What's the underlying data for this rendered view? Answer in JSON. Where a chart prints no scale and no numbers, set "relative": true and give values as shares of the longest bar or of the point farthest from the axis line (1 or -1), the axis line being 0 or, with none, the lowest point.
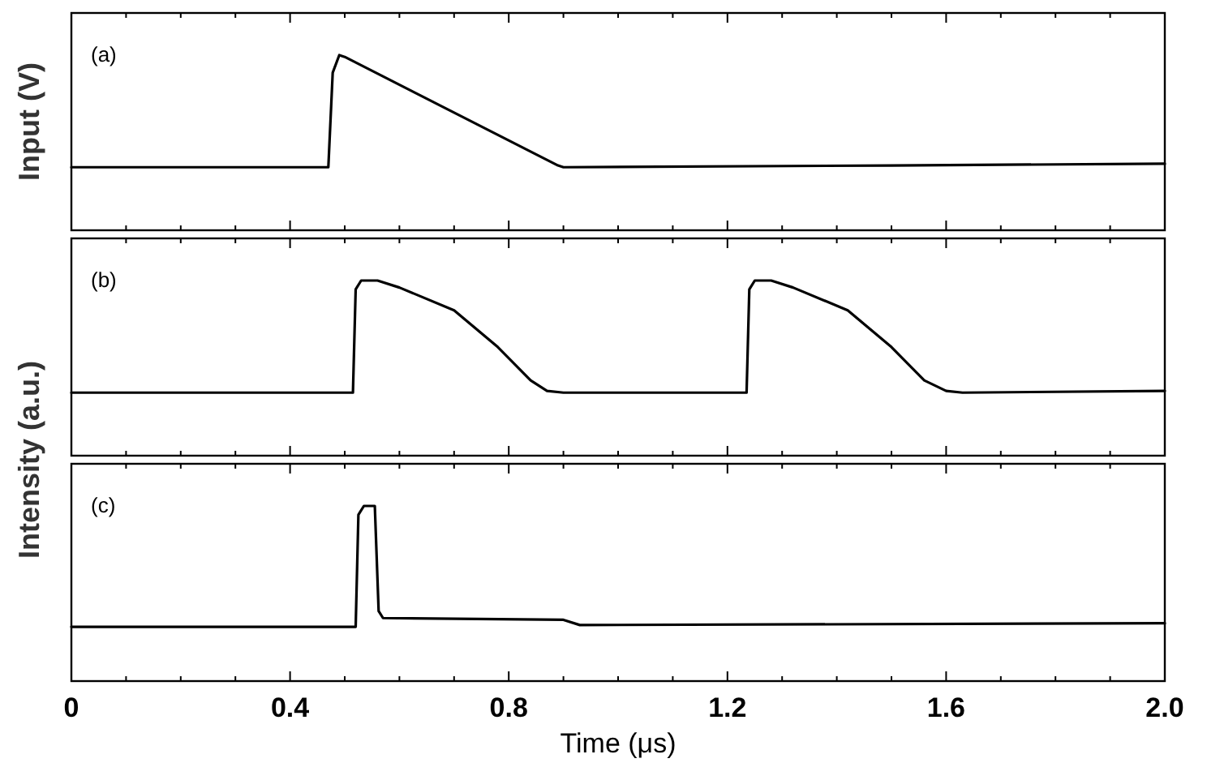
{
  "chart_data": [
    {
      "type": "line",
      "relative": true,
      "ylabel": "Input (V)",
      "annotations": [
        "(a)"
      ],
      "xlim": [
        0,
        2
      ],
      "xticks": [
        0,
        0.4,
        0.8,
        1.2,
        1.6,
        2.0
      ],
      "tick_labels": false,
      "series": [
        {
          "color": "#000000",
          "x": [
            0,
            0.47,
            0.478,
            0.49,
            0.5,
            0.89,
            0.9,
            1.5,
            2.0
          ],
          "values": [
            0.36,
            0.36,
            0.9,
            1,
            0.99,
            0.37,
            0.36,
            0.37,
            0.38
          ]
        }
      ]
    },
    {
      "type": "line",
      "relative": true,
      "ylabel": "Intensity (a.u.)",
      "annotations": [
        "(b)"
      ],
      "xlim": [
        0,
        2
      ],
      "xticks": [
        0,
        0.4,
        0.8,
        1.2,
        1.6,
        2.0
      ],
      "tick_labels": false,
      "series": [
        {
          "color": "#000000",
          "x": [
            0,
            0.515,
            0.52,
            0.53,
            0.56,
            0.6,
            0.7,
            0.78,
            0.84,
            0.87,
            0.9,
            1.235,
            1.24,
            1.25,
            1.28,
            1.32,
            1.42,
            1.5,
            1.56,
            1.6,
            1.63,
            2.0
          ],
          "values": [
            0.36,
            0.36,
            0.95,
            1,
            1,
            0.96,
            0.83,
            0.62,
            0.43,
            0.37,
            0.36,
            0.36,
            0.95,
            1,
            1,
            0.96,
            0.83,
            0.62,
            0.43,
            0.37,
            0.36,
            0.37
          ]
        }
      ]
    },
    {
      "type": "line",
      "relative": true,
      "xlabel": "Time (μs)",
      "annotations": [
        "(c)"
      ],
      "xlim": [
        0,
        2
      ],
      "xticks": [
        0,
        0.4,
        0.8,
        1.2,
        1.6,
        {
          "value": 2,
          "label": "2.0"
        }
      ],
      "tick_labels": "x",
      "series": [
        {
          "color": "#000000",
          "x": [
            0,
            0.52,
            0.525,
            0.535,
            0.555,
            0.562,
            0.57,
            0.9,
            0.93,
            2.0
          ],
          "values": [
            0.31,
            0.31,
            0.95,
            1,
            1,
            0.4,
            0.36,
            0.35,
            0.32,
            0.33
          ]
        }
      ]
    }
  ]
}
